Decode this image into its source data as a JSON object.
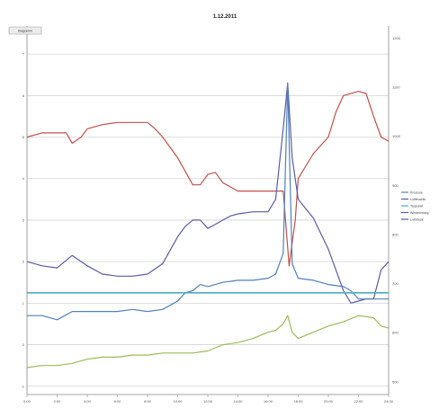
{
  "chart_data": {
    "type": "line",
    "title": "1.12.2011",
    "button_label": "Diagramm",
    "x_ticks": [
      "0:00",
      "2:00",
      "4:00",
      "6:00",
      "8:00",
      "10:00",
      "12:00",
      "14:00",
      "16:00",
      "18:00",
      "20:00",
      "22:00",
      "24:00"
    ],
    "x_range": [
      0,
      24
    ],
    "y_left_ticks": [
      "-1",
      "0",
      "1",
      "2",
      "3",
      "4",
      "5",
      "6",
      "7"
    ],
    "y_left_range": [
      -1.2,
      7.5
    ],
    "y_right_ticks": [
      "500",
      "600",
      "700",
      "800",
      "900",
      "1000",
      "1100",
      "1200"
    ],
    "y_right_range": [
      474,
      1210
    ],
    "legend": [
      "Pressure",
      "Luftfeuchte",
      "Taupunkt",
      "Windrichtung",
      "Luftdruck"
    ],
    "legend_position": "right",
    "series": [
      {
        "name": "red",
        "axis": "left",
        "color": "#c0504d",
        "x": [
          0,
          1,
          2,
          2.6,
          3,
          3.6,
          4,
          5,
          6,
          7,
          8,
          8.5,
          9,
          10,
          11,
          11.5,
          12,
          12.5,
          13,
          13.5,
          14,
          15,
          16,
          17,
          17.4,
          17.8,
          18,
          19,
          20,
          20.5,
          21,
          22,
          22.5,
          23,
          23.5,
          24
        ],
        "values": [
          5.0,
          5.1,
          5.1,
          5.1,
          4.85,
          5.0,
          5.2,
          5.3,
          5.35,
          5.35,
          5.35,
          5.2,
          5.0,
          4.5,
          3.85,
          3.85,
          4.1,
          4.15,
          3.9,
          3.8,
          3.7,
          3.7,
          3.7,
          3.7,
          1.9,
          3.0,
          4.0,
          4.6,
          5.0,
          5.6,
          6.0,
          6.1,
          6.05,
          5.5,
          5.0,
          4.9
        ]
      },
      {
        "name": "purple",
        "axis": "left",
        "color": "#5b5ba8",
        "x": [
          0,
          1,
          2,
          3,
          4,
          5,
          6,
          7,
          8,
          9,
          10,
          10.5,
          11,
          11.5,
          12,
          12.5,
          13,
          13.5,
          14,
          15,
          15.5,
          16,
          16.5,
          17,
          17.3,
          17.6,
          18,
          19,
          20,
          20.5,
          21,
          21.5,
          22,
          22.5,
          23,
          23.5,
          24
        ],
        "values": [
          2.0,
          1.9,
          1.85,
          2.15,
          1.9,
          1.7,
          1.65,
          1.65,
          1.7,
          1.95,
          2.6,
          2.85,
          3.0,
          3.0,
          2.8,
          2.9,
          3.0,
          3.1,
          3.15,
          3.2,
          3.2,
          3.2,
          3.5,
          5.2,
          6.3,
          4.5,
          3.5,
          3.05,
          2.3,
          1.8,
          1.3,
          1.0,
          1.05,
          1.1,
          1.1,
          1.8,
          2.0
        ]
      },
      {
        "name": "blue",
        "axis": "left",
        "color": "#4f81bd",
        "x": [
          0,
          1,
          2,
          3,
          4,
          5,
          6,
          7,
          8,
          9,
          10,
          10.5,
          11,
          11.5,
          12,
          13,
          14,
          15,
          16,
          16.5,
          17,
          17.3,
          17.6,
          18,
          19,
          20,
          21,
          21.5,
          22,
          23,
          24
        ],
        "values": [
          0.7,
          0.7,
          0.6,
          0.8,
          0.8,
          0.8,
          0.8,
          0.85,
          0.8,
          0.85,
          1.05,
          1.25,
          1.3,
          1.45,
          1.4,
          1.5,
          1.55,
          1.55,
          1.6,
          1.7,
          2.2,
          6.3,
          1.95,
          1.6,
          1.55,
          1.45,
          1.4,
          1.3,
          1.1,
          1.1,
          1.1
        ]
      },
      {
        "name": "cyan",
        "axis": "left",
        "color": "#4bacc6",
        "x": [
          0,
          24
        ],
        "values": [
          1.25,
          1.25
        ]
      },
      {
        "name": "green",
        "axis": "left",
        "color": "#9bbb59",
        "x": [
          0,
          1,
          2,
          3,
          4,
          5,
          6,
          7,
          8,
          9,
          10,
          11,
          12,
          13,
          14,
          15,
          16,
          16.5,
          17,
          17.3,
          17.6,
          18,
          19,
          20,
          21,
          22,
          23,
          23.5,
          24
        ],
        "values": [
          -0.55,
          -0.5,
          -0.5,
          -0.45,
          -0.35,
          -0.3,
          -0.3,
          -0.25,
          -0.25,
          -0.2,
          -0.2,
          -0.2,
          -0.15,
          0.0,
          0.05,
          0.15,
          0.3,
          0.35,
          0.5,
          0.7,
          0.3,
          0.15,
          0.3,
          0.45,
          0.55,
          0.7,
          0.65,
          0.45,
          0.4
        ]
      }
    ]
  }
}
